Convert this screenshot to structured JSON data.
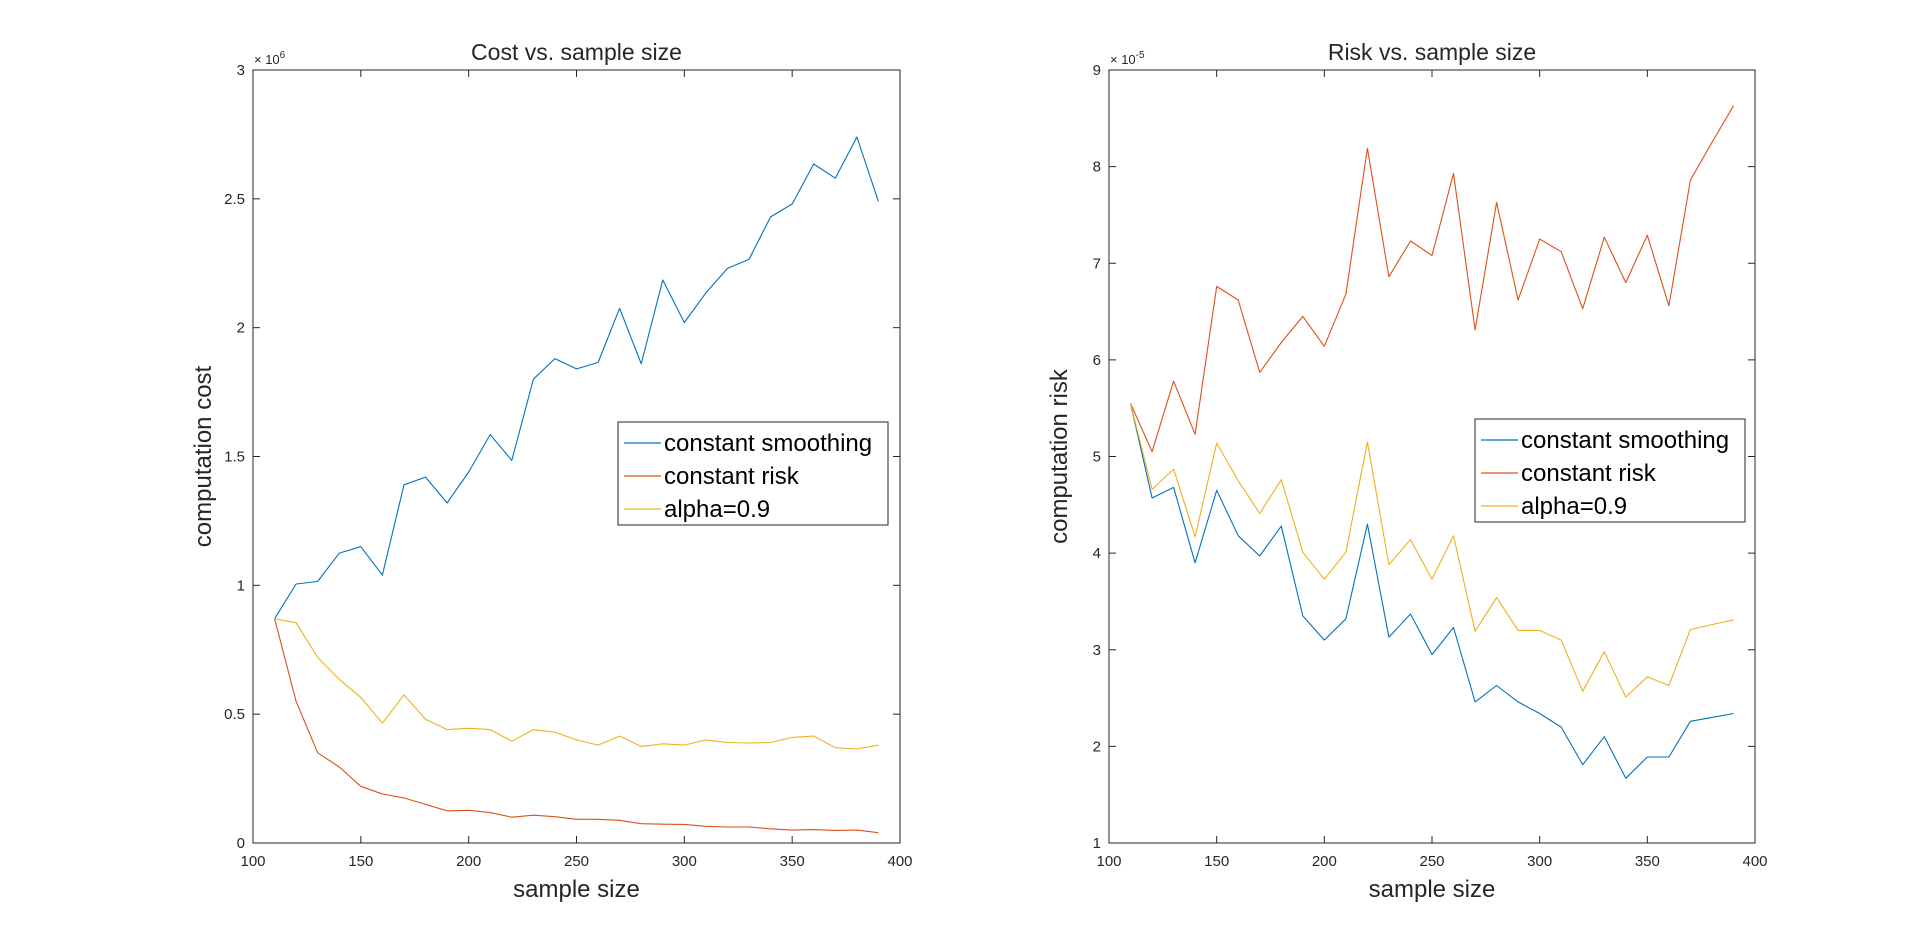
{
  "chart_data": [
    {
      "type": "line",
      "title": "Cost vs. sample size",
      "xlabel": "sample size",
      "ylabel": "computation cost",
      "xlim": [
        100,
        400
      ],
      "ylim": [
        0,
        3000000
      ],
      "xticks": [
        100,
        150,
        200,
        250,
        300,
        350,
        400
      ],
      "xtick_labels": [
        "100",
        "150",
        "200",
        "250",
        "300",
        "350",
        "400"
      ],
      "yticks": [
        0,
        500000,
        1000000,
        1500000,
        2000000,
        2500000,
        3000000
      ],
      "ytick_labels": [
        "0",
        "0.5",
        "1",
        "1.5",
        "2",
        "2.5",
        "3"
      ],
      "y_exponent": {
        "base": "× 10",
        "power": "6"
      },
      "grid": false,
      "legend_position": "right",
      "x": [
        110,
        120,
        130,
        140,
        150,
        160,
        170,
        180,
        190,
        200,
        210,
        220,
        230,
        240,
        250,
        260,
        270,
        280,
        290,
        300,
        310,
        320,
        330,
        340,
        350,
        360,
        370,
        380,
        390
      ],
      "series": [
        {
          "name": "constant smoothing",
          "color": "#0072BD",
          "values": [
            870000,
            1005000,
            1015000,
            1125000,
            1150000,
            1040000,
            1390000,
            1420000,
            1320000,
            1440000,
            1585000,
            1485000,
            1800000,
            1880000,
            1840000,
            1865000,
            2075000,
            1860000,
            2185000,
            2020000,
            2135000,
            2230000,
            2265000,
            2430000,
            2480000,
            2635000,
            2580000,
            2740000,
            2490000
          ]
        },
        {
          "name": "constant risk",
          "color": "#D95319",
          "values": [
            870000,
            550000,
            350000,
            295000,
            220000,
            190000,
            175000,
            150000,
            125000,
            127000,
            118000,
            100000,
            108000,
            102000,
            92000,
            92000,
            88000,
            75000,
            73000,
            72000,
            65000,
            62000,
            62000,
            55000,
            50000,
            52000,
            49000,
            50000,
            40000
          ]
        },
        {
          "name": "alpha=0.9",
          "color": "#EDB120",
          "values": [
            870000,
            855000,
            720000,
            635000,
            565000,
            465000,
            575000,
            480000,
            440000,
            445000,
            440000,
            395000,
            440000,
            430000,
            400000,
            380000,
            415000,
            375000,
            385000,
            380000,
            400000,
            390000,
            388000,
            390000,
            410000,
            415000,
            370000,
            365000,
            380000
          ]
        }
      ]
    },
    {
      "type": "line",
      "title": "Risk vs. sample size",
      "xlabel": "sample size",
      "ylabel": "computation risk",
      "xlim": [
        100,
        400
      ],
      "ylim": [
        1e-05,
        9e-05
      ],
      "xticks": [
        100,
        150,
        200,
        250,
        300,
        350,
        400
      ],
      "xtick_labels": [
        "100",
        "150",
        "200",
        "250",
        "300",
        "350",
        "400"
      ],
      "yticks": [
        1e-05,
        2e-05,
        3e-05,
        4e-05,
        5e-05,
        6e-05,
        7e-05,
        8e-05,
        9e-05
      ],
      "ytick_labels": [
        "1",
        "2",
        "3",
        "4",
        "5",
        "6",
        "7",
        "8",
        "9"
      ],
      "y_exponent": {
        "base": "× 10",
        "power": "-5"
      },
      "grid": false,
      "legend_position": "right",
      "x": [
        110,
        120,
        130,
        140,
        150,
        160,
        170,
        180,
        190,
        200,
        210,
        220,
        230,
        240,
        250,
        260,
        270,
        280,
        290,
        300,
        310,
        320,
        330,
        340,
        350,
        360,
        370,
        380,
        390
      ],
      "series": [
        {
          "name": "constant smoothing",
          "color": "#0072BD",
          "values": [
            5.55e-05,
            4.57e-05,
            4.68e-05,
            3.9e-05,
            4.65e-05,
            4.18e-05,
            3.97e-05,
            4.28e-05,
            3.35e-05,
            3.1e-05,
            3.32e-05,
            4.3e-05,
            3.13e-05,
            3.37e-05,
            2.95e-05,
            3.23e-05,
            2.46e-05,
            2.63e-05,
            2.46e-05,
            2.34e-05,
            2.2e-05,
            1.81e-05,
            2.1e-05,
            1.67e-05,
            1.89e-05,
            1.89e-05,
            2.26e-05,
            2.3e-05,
            2.34e-05
          ]
        },
        {
          "name": "constant risk",
          "color": "#D95319",
          "values": [
            5.55e-05,
            5.05e-05,
            5.78e-05,
            5.23e-05,
            6.76e-05,
            6.62e-05,
            5.87e-05,
            6.18e-05,
            6.45e-05,
            6.14e-05,
            6.68e-05,
            8.19e-05,
            6.86e-05,
            7.23e-05,
            7.08e-05,
            7.93e-05,
            6.31e-05,
            7.63e-05,
            6.62e-05,
            7.25e-05,
            7.12e-05,
            6.53e-05,
            7.27e-05,
            6.8e-05,
            7.29e-05,
            6.56e-05,
            7.86e-05,
            8.25e-05,
            8.63e-05
          ]
        },
        {
          "name": "alpha=0.9",
          "color": "#EDB120",
          "values": [
            5.55e-05,
            4.66e-05,
            4.87e-05,
            4.17e-05,
            5.14e-05,
            4.75e-05,
            4.41e-05,
            4.76e-05,
            4.01e-05,
            3.73e-05,
            4.01e-05,
            5.15e-05,
            3.88e-05,
            4.14e-05,
            3.73e-05,
            4.18e-05,
            3.19e-05,
            3.54e-05,
            3.2e-05,
            3.2e-05,
            3.1e-05,
            2.57e-05,
            2.98e-05,
            2.51e-05,
            2.72e-05,
            2.63e-05,
            3.21e-05,
            3.26e-05,
            3.31e-05
          ]
        }
      ]
    }
  ]
}
